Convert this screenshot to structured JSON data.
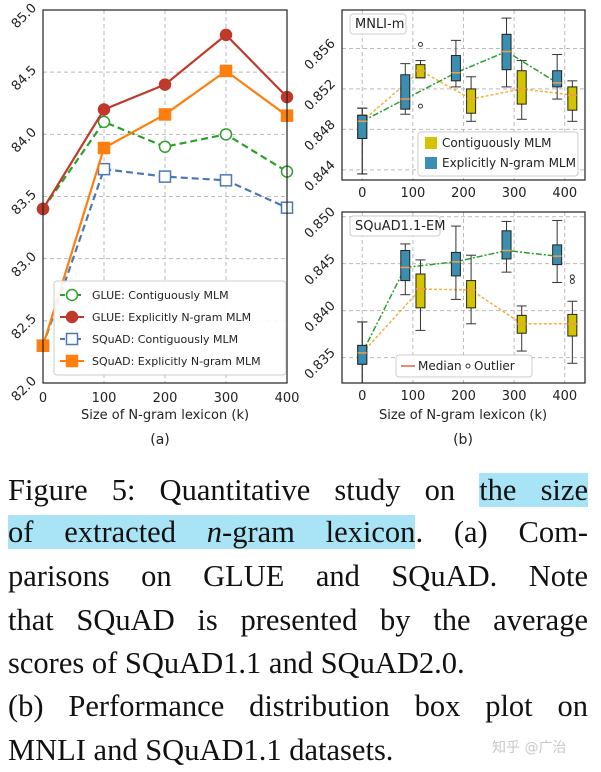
{
  "chart_data": [
    {
      "type": "line",
      "panel_label": "(a)",
      "xlabel": "Size of N-gram lexicon (k)",
      "ylabel": "",
      "x": [
        0,
        100,
        200,
        300,
        400
      ],
      "xticks": [
        "0",
        "100",
        "200",
        "300",
        "400"
      ],
      "yticks": [
        "82.0",
        "82.5",
        "83.0",
        "83.5",
        "84.0",
        "84.5",
        "85.0"
      ],
      "xlim": [
        0,
        400
      ],
      "ylim": [
        82.0,
        85.0
      ],
      "grid": true,
      "legend_position": "bottom-right",
      "series": [
        {
          "name": "GLUE: Contiguously MLM",
          "color": "#2ca02c",
          "style": "dashed",
          "marker": "open-circle",
          "values": [
            83.4,
            84.1,
            83.9,
            84.0,
            83.7
          ]
        },
        {
          "name": "GLUE: Explicitly N-gram MLM",
          "color": "#c0392b",
          "style": "solid",
          "marker": "filled-circle",
          "values": [
            83.4,
            84.2,
            84.4,
            84.8,
            84.3
          ]
        },
        {
          "name": "SQuAD: Contiguously MLM",
          "color": "#4a7ab5",
          "style": "dashed",
          "marker": "open-square",
          "values": [
            82.3,
            83.72,
            83.66,
            83.63,
            83.41
          ]
        },
        {
          "name": "SQuAD: Explicitly N-gram MLM",
          "color": "#ff7f0e",
          "style": "solid",
          "marker": "filled-square",
          "values": [
            82.3,
            83.89,
            84.16,
            84.51,
            84.15
          ]
        }
      ]
    },
    {
      "type": "box",
      "panel_label": "(b)",
      "xlabel": "Size of N-gram lexicon (k)",
      "xticks": [
        "0",
        "100",
        "200",
        "300",
        "400"
      ],
      "xlim": [
        -40,
        440
      ],
      "grid": true,
      "panels": [
        {
          "title": "MNLI-m",
          "ylim": [
            0.843,
            0.8598
          ],
          "yticks": [
            "0.844",
            "0.848",
            "0.852",
            "0.856"
          ],
          "ytick_values": [
            0.844,
            0.848,
            0.852,
            0.856
          ],
          "legend_position": "bottom-right",
          "legend": [
            "Contiguously MLM",
            "Explicitly N-gram MLM"
          ],
          "series": [
            {
              "name": "Contiguously MLM",
              "color": "#d4c400",
              "median_color": "#f5b041",
              "boxes": [
                {
                  "x": 0,
                  "min": 0.8436,
                  "q1": 0.8471,
                  "median": 0.8488,
                  "q3": 0.8494,
                  "max": 0.8501,
                  "outliers": []
                },
                {
                  "x": 100,
                  "min": 0.8531,
                  "q1": 0.8531,
                  "median": 0.8538,
                  "q3": 0.8544,
                  "max": 0.8548,
                  "outliers": [
                    0.8564,
                    0.8503
                  ]
                },
                {
                  "x": 200,
                  "min": 0.8488,
                  "q1": 0.8496,
                  "median": 0.851,
                  "q3": 0.852,
                  "max": 0.8532,
                  "outliers": []
                },
                {
                  "x": 300,
                  "min": 0.849,
                  "q1": 0.8505,
                  "median": 0.852,
                  "q3": 0.8538,
                  "max": 0.8548,
                  "outliers": []
                },
                {
                  "x": 400,
                  "min": 0.8488,
                  "q1": 0.8499,
                  "median": 0.8514,
                  "q3": 0.8522,
                  "max": 0.8528,
                  "outliers": []
                }
              ]
            },
            {
              "name": "Explicitly N-gram MLM",
              "color": "#3a8fb0",
              "median_color": "#2ca02c",
              "boxes": [
                {
                  "x": 0,
                  "min": 0.8436,
                  "q1": 0.8471,
                  "median": 0.8488,
                  "q3": 0.8494,
                  "max": 0.8501,
                  "outliers": []
                },
                {
                  "x": 100,
                  "min": 0.8495,
                  "q1": 0.85,
                  "median": 0.851,
                  "q3": 0.8534,
                  "max": 0.8545,
                  "outliers": []
                },
                {
                  "x": 200,
                  "min": 0.8522,
                  "q1": 0.8528,
                  "median": 0.8536,
                  "q3": 0.8553,
                  "max": 0.8568,
                  "outliers": []
                },
                {
                  "x": 300,
                  "min": 0.8522,
                  "q1": 0.8539,
                  "median": 0.8557,
                  "q3": 0.8574,
                  "max": 0.859,
                  "outliers": []
                },
                {
                  "x": 400,
                  "min": 0.851,
                  "q1": 0.8522,
                  "median": 0.8526,
                  "q3": 0.8538,
                  "max": 0.8554,
                  "outliers": []
                }
              ]
            }
          ]
        },
        {
          "title": "SQuAD1.1-EM",
          "ylim": [
            0.8323,
            0.8505
          ],
          "yticks": [
            "0.835",
            "0.840",
            "0.845",
            "0.850"
          ],
          "ytick_values": [
            0.835,
            0.84,
            0.845,
            0.85
          ],
          "legend_position": "bottom-center",
          "legend": [
            "Median",
            "Outlier"
          ],
          "series": [
            {
              "name": "Contiguously MLM",
              "color": "#d4c400",
              "median_color": "#f5b041",
              "boxes": [
                {
                  "x": 0,
                  "min": 0.8323,
                  "q1": 0.8343,
                  "median": 0.8355,
                  "q3": 0.8363,
                  "max": 0.8388,
                  "outliers": []
                },
                {
                  "x": 100,
                  "min": 0.8379,
                  "q1": 0.8403,
                  "median": 0.8423,
                  "q3": 0.8439,
                  "max": 0.8454,
                  "outliers": []
                },
                {
                  "x": 200,
                  "min": 0.8386,
                  "q1": 0.8403,
                  "median": 0.8422,
                  "q3": 0.8432,
                  "max": 0.8459,
                  "outliers": []
                },
                {
                  "x": 300,
                  "min": 0.8357,
                  "q1": 0.8376,
                  "median": 0.8386,
                  "q3": 0.8395,
                  "max": 0.8405,
                  "outliers": []
                },
                {
                  "x": 400,
                  "min": 0.8344,
                  "q1": 0.8373,
                  "median": 0.8386,
                  "q3": 0.8396,
                  "max": 0.841,
                  "outliers": [
                    0.8436,
                    0.8431
                  ]
                }
              ]
            },
            {
              "name": "Explicitly N-gram MLM",
              "color": "#3a8fb0",
              "median_color": "#2ca02c",
              "boxes": [
                {
                  "x": 0,
                  "min": 0.8323,
                  "q1": 0.8343,
                  "median": 0.8355,
                  "q3": 0.8363,
                  "max": 0.8388,
                  "outliers": []
                },
                {
                  "x": 100,
                  "min": 0.8417,
                  "q1": 0.8432,
                  "median": 0.8446,
                  "q3": 0.8464,
                  "max": 0.8471,
                  "outliers": []
                },
                {
                  "x": 200,
                  "min": 0.8412,
                  "q1": 0.8437,
                  "median": 0.8452,
                  "q3": 0.8462,
                  "max": 0.849,
                  "outliers": []
                },
                {
                  "x": 300,
                  "min": 0.8441,
                  "q1": 0.8455,
                  "median": 0.8464,
                  "q3": 0.8485,
                  "max": 0.8495,
                  "outliers": []
                },
                {
                  "x": 400,
                  "min": 0.843,
                  "q1": 0.8449,
                  "median": 0.8458,
                  "q3": 0.847,
                  "max": 0.8496,
                  "outliers": []
                }
              ]
            }
          ]
        }
      ]
    }
  ],
  "caption": {
    "lines": [
      [
        {
          "t": "Figure 5: Quantitative study on "
        },
        {
          "t": "the size",
          "hl": true
        }
      ],
      [
        {
          "t": "of extracted ",
          "hl": true
        },
        {
          "t": "n",
          "hl": true,
          "i": true
        },
        {
          "t": "-gram lexicon",
          "hl": true
        },
        {
          "t": ".  (a) Com-"
        }
      ],
      [
        {
          "t": "parisons on GLUE and SQuAD. Note"
        }
      ],
      [
        {
          "t": "that SQuAD is presented by the average"
        }
      ],
      [
        {
          "t": "scores of SQuAD1.1 and SQuAD2.0."
        }
      ],
      [
        {
          "t": "(b) Performance distribution box plot on"
        }
      ],
      [
        {
          "t": "MNLI and SQuAD1.1 datasets."
        }
      ]
    ],
    "highlight_color": "#a8e4f5"
  },
  "watermark": "知乎 @广治"
}
